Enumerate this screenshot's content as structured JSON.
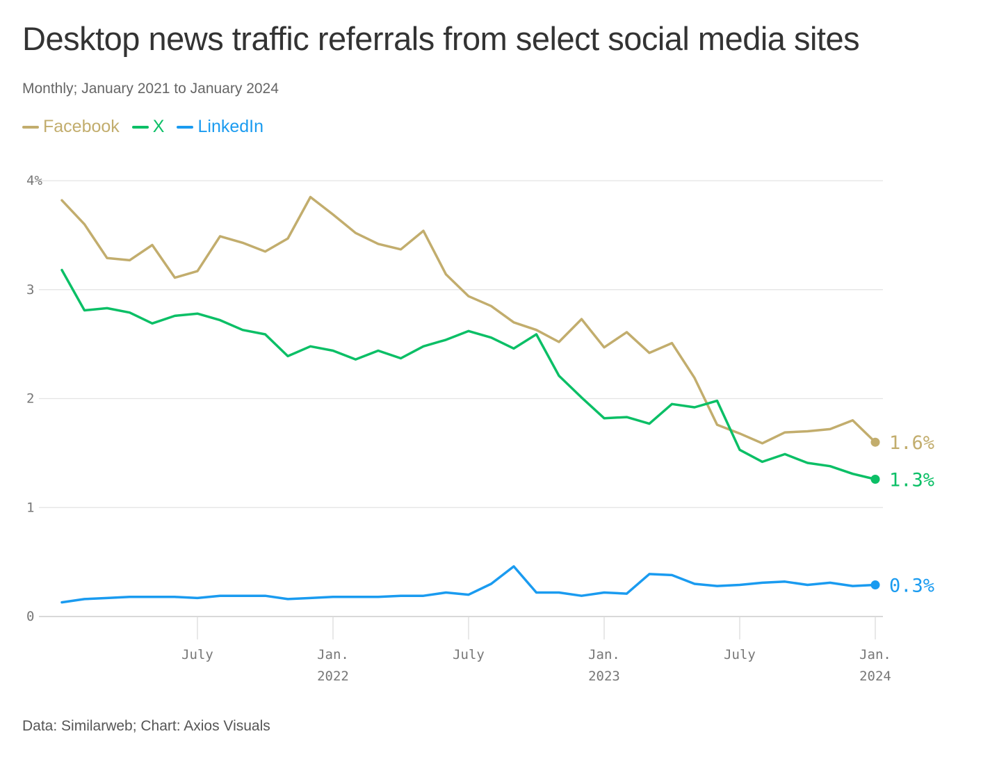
{
  "header": {
    "title": "Desktop news traffic referrals from select social media sites",
    "subtitle": "Monthly; January 2021 to January 2024"
  },
  "footer": {
    "source": "Data: Similarweb; Chart: Axios Visuals"
  },
  "chart_data": {
    "type": "line",
    "title": "Desktop news traffic referrals from select social media sites",
    "subtitle": "Monthly; January 2021 to January 2024",
    "x_start": "2021-01",
    "x_end": "2024-01",
    "ylim": [
      0,
      4
    ],
    "y_ticks": [
      {
        "value": 4,
        "label": "4%"
      },
      {
        "value": 3,
        "label": "3"
      },
      {
        "value": 2,
        "label": "2"
      },
      {
        "value": 1,
        "label": "1"
      },
      {
        "value": 0,
        "label": "0"
      }
    ],
    "x_ticks": [
      {
        "index": 6,
        "label": "July",
        "year": ""
      },
      {
        "index": 12,
        "label": "Jan.",
        "year": "2022"
      },
      {
        "index": 18,
        "label": "July",
        "year": ""
      },
      {
        "index": 24,
        "label": "Jan.",
        "year": "2023"
      },
      {
        "index": 30,
        "label": "July",
        "year": ""
      },
      {
        "index": 36,
        "label": "Jan.",
        "year": "2024"
      }
    ],
    "grid": true,
    "legend_position": "top-left",
    "series": [
      {
        "name": "Facebook",
        "color": "#c2ad6d",
        "end_label": "1.6%",
        "values": [
          3.82,
          3.6,
          3.29,
          3.27,
          3.41,
          3.11,
          3.17,
          3.49,
          3.43,
          3.35,
          3.47,
          3.85,
          3.69,
          3.52,
          3.42,
          3.37,
          3.54,
          3.14,
          2.94,
          2.85,
          2.7,
          2.63,
          2.52,
          2.73,
          2.47,
          2.61,
          2.42,
          2.51,
          2.19,
          1.76,
          1.68,
          1.59,
          1.69,
          1.7,
          1.72,
          1.8,
          1.6
        ]
      },
      {
        "name": "X",
        "color": "#0bbf66",
        "end_label": "1.3%",
        "values": [
          3.18,
          2.81,
          2.83,
          2.79,
          2.69,
          2.76,
          2.78,
          2.72,
          2.63,
          2.59,
          2.39,
          2.48,
          2.44,
          2.36,
          2.44,
          2.37,
          2.48,
          2.54,
          2.62,
          2.56,
          2.46,
          2.59,
          2.21,
          2.01,
          1.82,
          1.83,
          1.77,
          1.95,
          1.92,
          1.98,
          1.53,
          1.42,
          1.49,
          1.41,
          1.38,
          1.31,
          1.26
        ]
      },
      {
        "name": "LinkedIn",
        "color": "#1a9bf0",
        "end_label": "0.3%",
        "values": [
          0.13,
          0.16,
          0.17,
          0.18,
          0.18,
          0.18,
          0.17,
          0.19,
          0.19,
          0.19,
          0.16,
          0.17,
          0.18,
          0.18,
          0.18,
          0.19,
          0.19,
          0.22,
          0.2,
          0.3,
          0.46,
          0.22,
          0.22,
          0.19,
          0.22,
          0.21,
          0.39,
          0.38,
          0.3,
          0.28,
          0.29,
          0.31,
          0.32,
          0.29,
          0.31,
          0.28,
          0.29
        ]
      }
    ]
  }
}
